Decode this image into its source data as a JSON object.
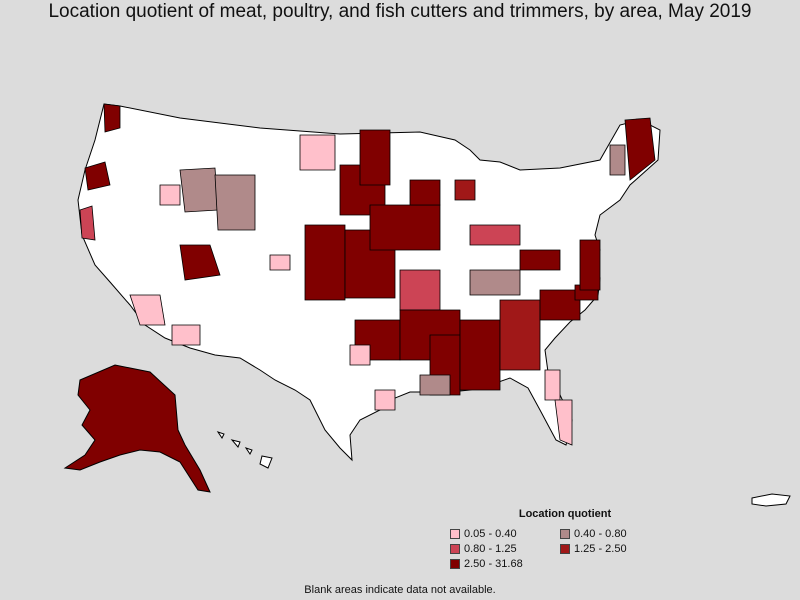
{
  "title": "Location quotient of meat, poultry, and fish cutters and trimmers, by area, May 2019",
  "legend": {
    "title": "Location quotient",
    "items": [
      {
        "label": "0.05 - 0.40",
        "color": "#ffc0cb"
      },
      {
        "label": "0.40 - 0.80",
        "color": "#b08a8a"
      },
      {
        "label": "0.80 - 1.25",
        "color": "#cc4455"
      },
      {
        "label": "1.25 - 2.50",
        "color": "#a01818"
      },
      {
        "label": "2.50 - 31.68",
        "color": "#800000"
      }
    ]
  },
  "footnote": "Blank areas indicate data not available.",
  "colors": {
    "background": "#dcdcdc",
    "no_data": "#ffffff",
    "border": "#000000"
  }
}
